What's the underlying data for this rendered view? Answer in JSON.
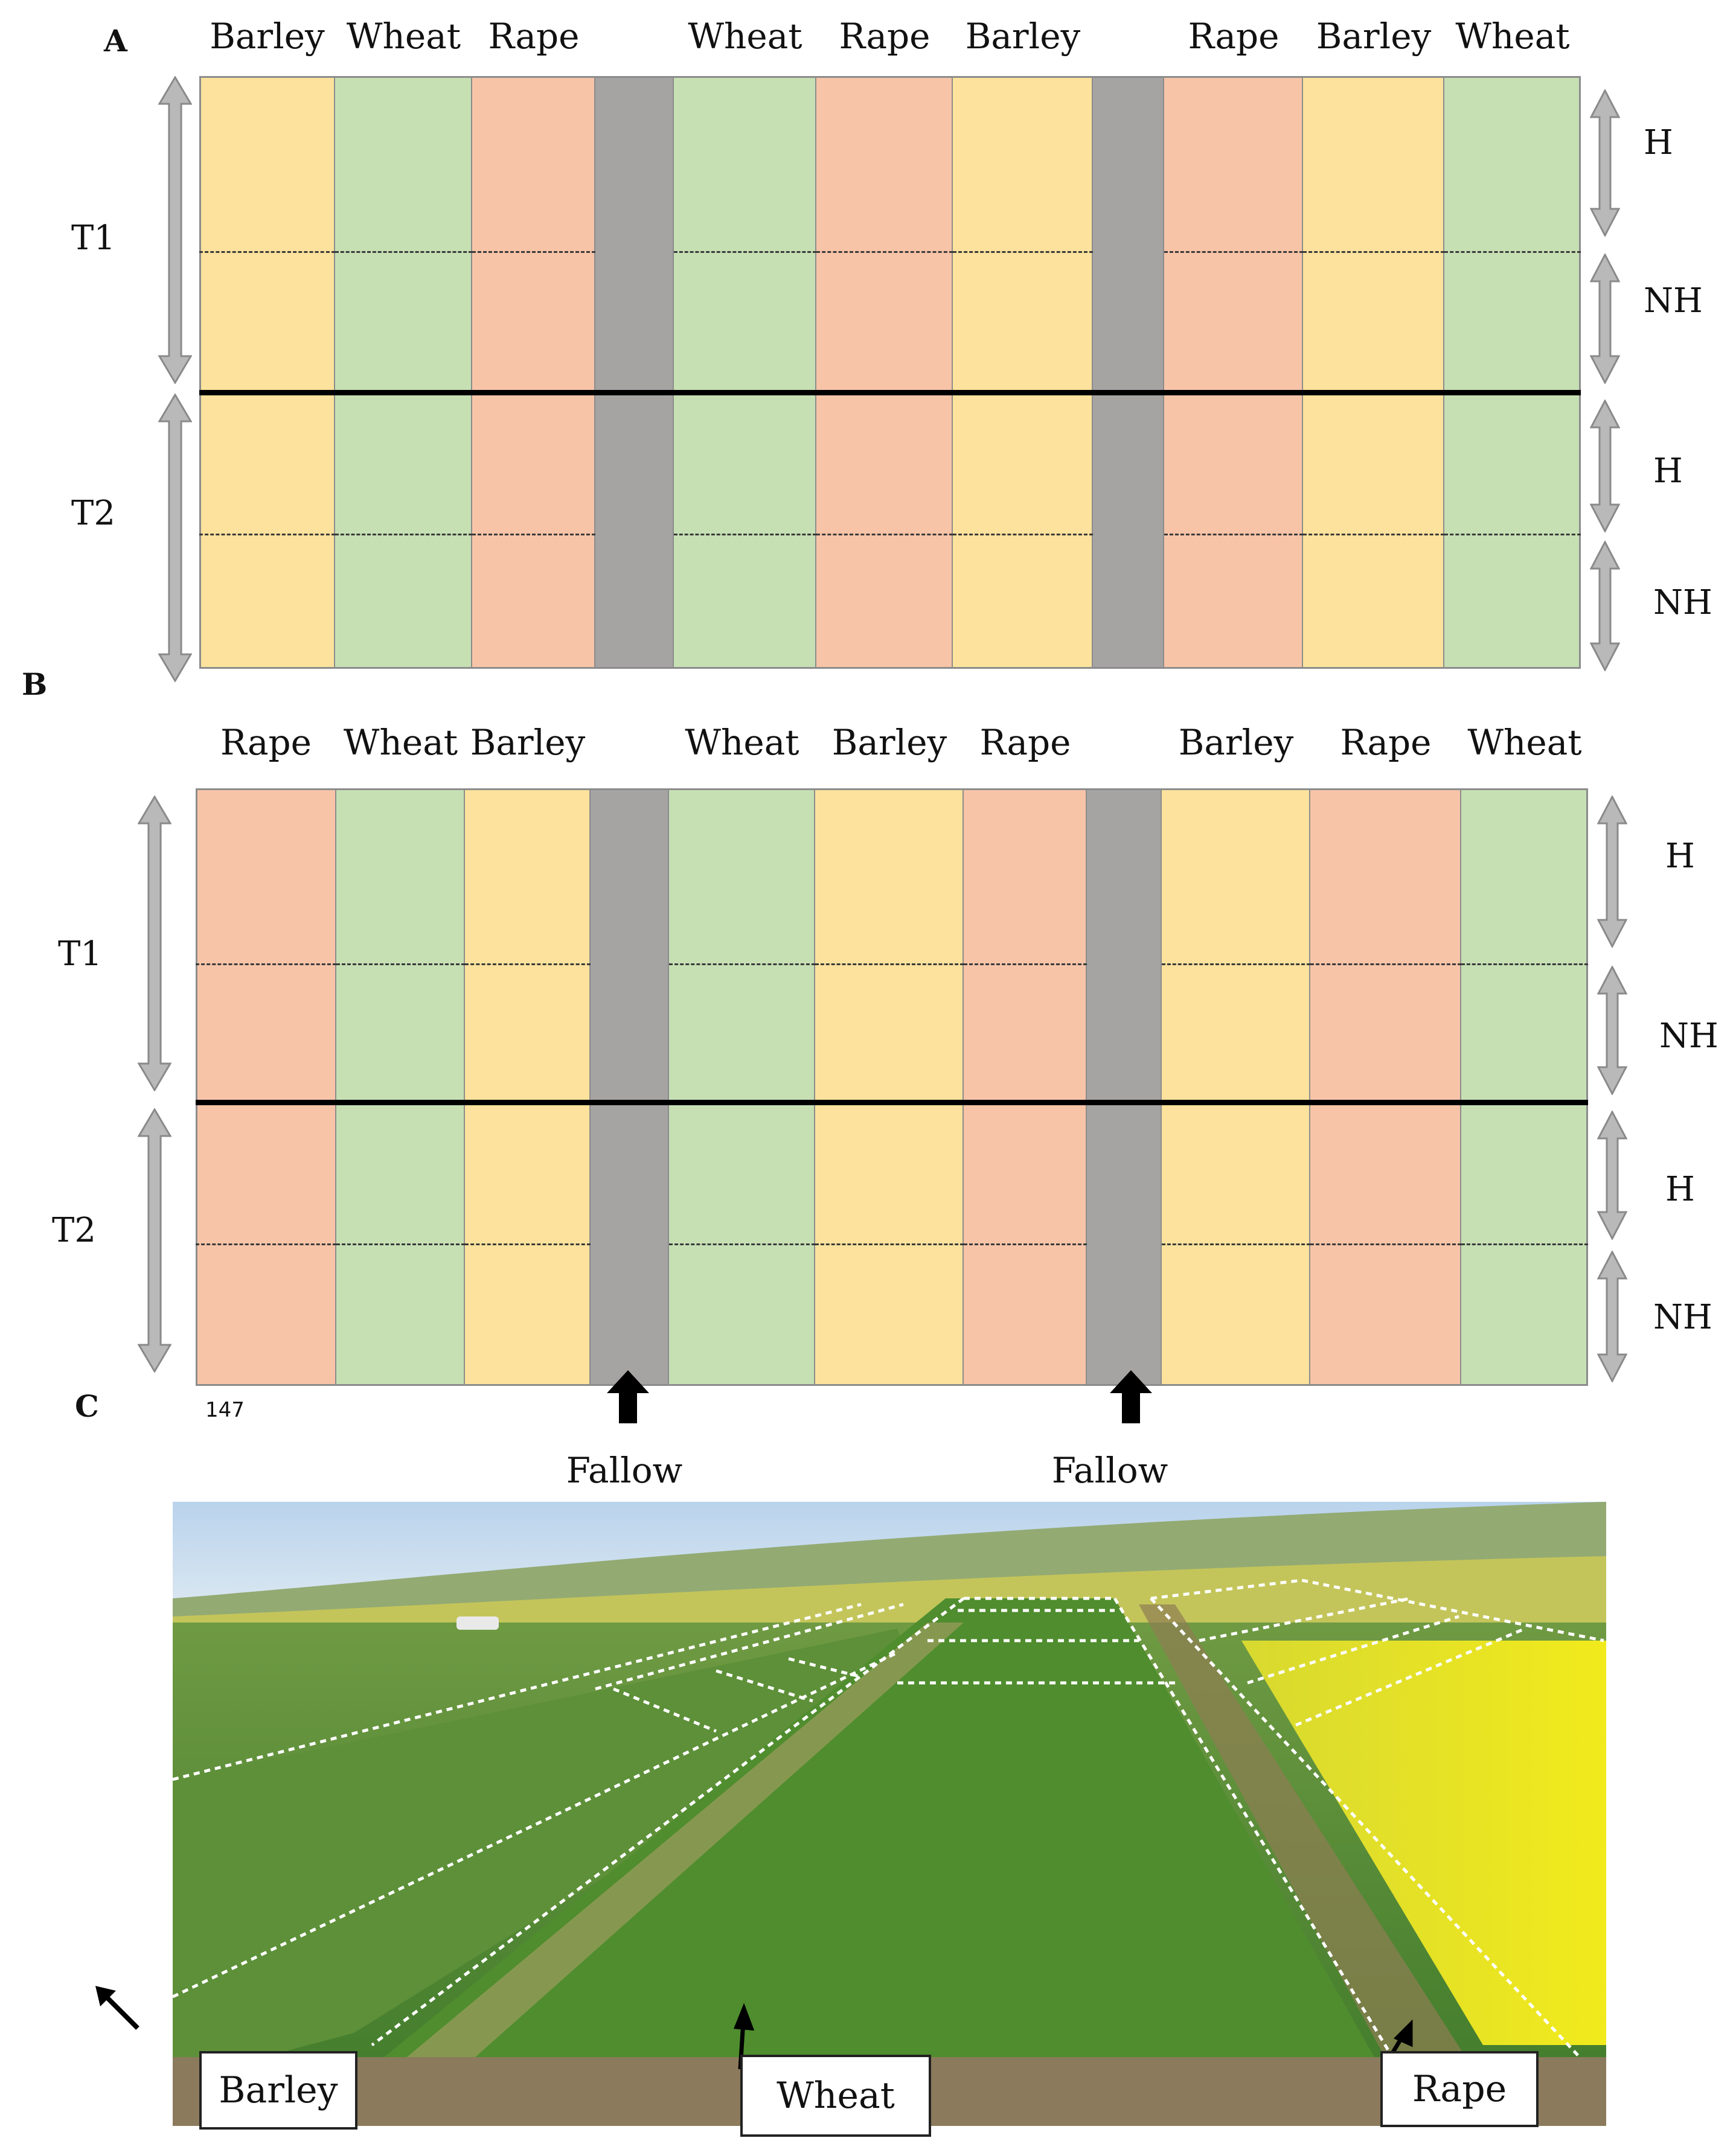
{
  "colors": {
    "barley": "#fce29c",
    "wheat": "#c6e0b4",
    "rape": "#f8c4a8",
    "fallow": "#a6a3a3",
    "arrow": "#b9b9b9"
  },
  "panel_a": {
    "letter": "A",
    "crops": [
      "Barley",
      "Wheat",
      "Rape",
      "",
      "Wheat",
      "Rape",
      "Barley",
      "",
      "Rape",
      "Barley",
      "Wheat"
    ],
    "types": [
      "barley",
      "wheat",
      "rape",
      "fallow",
      "wheat",
      "rape",
      "barley",
      "fallow",
      "rape",
      "barley",
      "wheat"
    ],
    "t1": "T1",
    "t2": "T2",
    "right": [
      "H",
      "NH",
      "H",
      "NH"
    ]
  },
  "panel_b": {
    "letter": "B",
    "crops": [
      "Rape",
      "Wheat",
      "Barley",
      "",
      "Wheat",
      "Barley",
      "Rape",
      "",
      "Barley",
      "Rape",
      "Wheat"
    ],
    "types": [
      "rape",
      "wheat",
      "barley",
      "fallow",
      "wheat",
      "barley",
      "rape",
      "fallow",
      "barley",
      "rape",
      "wheat"
    ],
    "t1": "T1",
    "t2": "T2",
    "right": [
      "H",
      "NH",
      "H",
      "NH"
    ],
    "page_number": "147",
    "fallow_labels": [
      "Fallow",
      "Fallow"
    ]
  },
  "panel_c": {
    "letter": "C",
    "labels": [
      "Barley",
      "Wheat",
      "Rape"
    ]
  }
}
